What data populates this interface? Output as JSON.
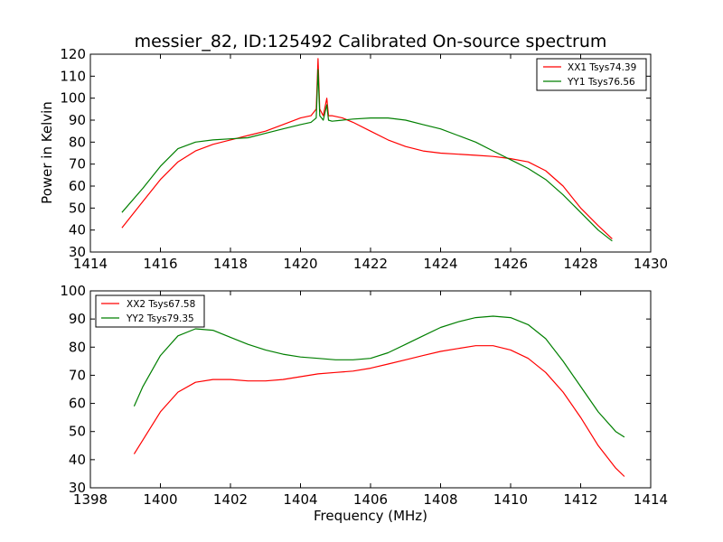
{
  "chart_data": [
    {
      "type": "line",
      "title": "messier_82, ID:125492 Calibrated On-source spectrum",
      "xlabel": "",
      "ylabel": "Power in Kelvin",
      "xlim": [
        1414,
        1430
      ],
      "ylim": [
        30,
        120
      ],
      "xticks": [
        "1414",
        "1416",
        "1418",
        "1420",
        "1422",
        "1424",
        "1426",
        "1428",
        "1430"
      ],
      "yticks": [
        "30",
        "40",
        "50",
        "60",
        "70",
        "80",
        "90",
        "100",
        "110",
        "120"
      ],
      "legend_position": "top-right",
      "series": [
        {
          "name": "XX1 Tsys74.39",
          "color": "#ff0000",
          "x": [
            1414.9,
            1415.5,
            1416.0,
            1416.5,
            1417.0,
            1417.5,
            1418.0,
            1418.5,
            1419.0,
            1419.5,
            1420.0,
            1420.3,
            1420.45,
            1420.5,
            1420.55,
            1420.65,
            1420.75,
            1420.8,
            1420.9,
            1421.2,
            1421.5,
            1422.0,
            1422.5,
            1423.0,
            1423.5,
            1424.0,
            1424.5,
            1425.0,
            1425.5,
            1426.0,
            1426.5,
            1427.0,
            1427.5,
            1428.0,
            1428.5,
            1428.9
          ],
          "values": [
            41,
            53,
            63,
            71,
            76,
            79,
            81,
            83,
            85,
            88,
            91,
            92,
            95,
            118,
            95,
            92,
            100,
            92,
            92,
            91,
            89,
            85,
            81,
            78,
            76,
            75,
            74.5,
            74,
            73.5,
            72.5,
            71,
            67,
            60,
            50,
            42,
            36
          ]
        },
        {
          "name": "YY1 Tsys76.56",
          "color": "#007f00",
          "x": [
            1414.9,
            1415.5,
            1416.0,
            1416.5,
            1417.0,
            1417.5,
            1418.0,
            1418.5,
            1419.0,
            1419.5,
            1420.0,
            1420.3,
            1420.45,
            1420.5,
            1420.55,
            1420.65,
            1420.75,
            1420.8,
            1420.9,
            1421.2,
            1421.5,
            1422.0,
            1422.5,
            1423.0,
            1423.5,
            1424.0,
            1424.5,
            1425.0,
            1425.5,
            1426.0,
            1426.5,
            1427.0,
            1427.5,
            1428.0,
            1428.5,
            1428.9
          ],
          "values": [
            48,
            59,
            69,
            77,
            80,
            81,
            81.5,
            82,
            84,
            86,
            88,
            89,
            91,
            113,
            92,
            90,
            97,
            90,
            89.5,
            90,
            90.5,
            91,
            91,
            90,
            88,
            86,
            83,
            80,
            76,
            72,
            68,
            63,
            56,
            48,
            40,
            35
          ]
        }
      ]
    },
    {
      "type": "line",
      "title": "",
      "xlabel": "Frequency (MHz)",
      "ylabel": "",
      "xlim": [
        1398,
        1414
      ],
      "ylim": [
        30,
        100
      ],
      "xticks": [
        "1398",
        "1400",
        "1402",
        "1404",
        "1406",
        "1408",
        "1410",
        "1412",
        "1414"
      ],
      "yticks": [
        "30",
        "40",
        "50",
        "60",
        "70",
        "80",
        "90",
        "100"
      ],
      "legend_position": "top-left",
      "series": [
        {
          "name": "XX2 Tsys67.58",
          "color": "#ff0000",
          "x": [
            1399.25,
            1399.5,
            1400.0,
            1400.5,
            1401.0,
            1401.5,
            1402.0,
            1402.5,
            1403.0,
            1403.5,
            1404.0,
            1404.5,
            1405.0,
            1405.5,
            1406.0,
            1406.5,
            1407.0,
            1407.5,
            1408.0,
            1408.5,
            1409.0,
            1409.5,
            1410.0,
            1410.5,
            1411.0,
            1411.5,
            1412.0,
            1412.5,
            1413.0,
            1413.25
          ],
          "values": [
            42,
            47,
            57,
            64,
            67.5,
            68.5,
            68.5,
            68,
            68,
            68.5,
            69.5,
            70.5,
            71,
            71.5,
            72.5,
            74,
            75.5,
            77,
            78.5,
            79.5,
            80.5,
            80.5,
            79,
            76,
            71,
            64,
            55,
            45,
            37,
            34
          ]
        },
        {
          "name": "YY2 Tsys79.35",
          "color": "#007f00",
          "x": [
            1399.25,
            1399.5,
            1400.0,
            1400.5,
            1401.0,
            1401.5,
            1402.0,
            1402.5,
            1403.0,
            1403.5,
            1404.0,
            1404.5,
            1405.0,
            1405.5,
            1406.0,
            1406.5,
            1407.0,
            1407.5,
            1408.0,
            1408.5,
            1409.0,
            1409.5,
            1410.0,
            1410.5,
            1411.0,
            1411.5,
            1412.0,
            1412.5,
            1413.0,
            1413.25
          ],
          "values": [
            59,
            66,
            77,
            84,
            86.5,
            86,
            83.5,
            81,
            79,
            77.5,
            76.5,
            76,
            75.5,
            75.5,
            76,
            78,
            81,
            84,
            87,
            89,
            90.5,
            91,
            90.5,
            88,
            83,
            75,
            66,
            57,
            50,
            48
          ]
        }
      ]
    }
  ]
}
